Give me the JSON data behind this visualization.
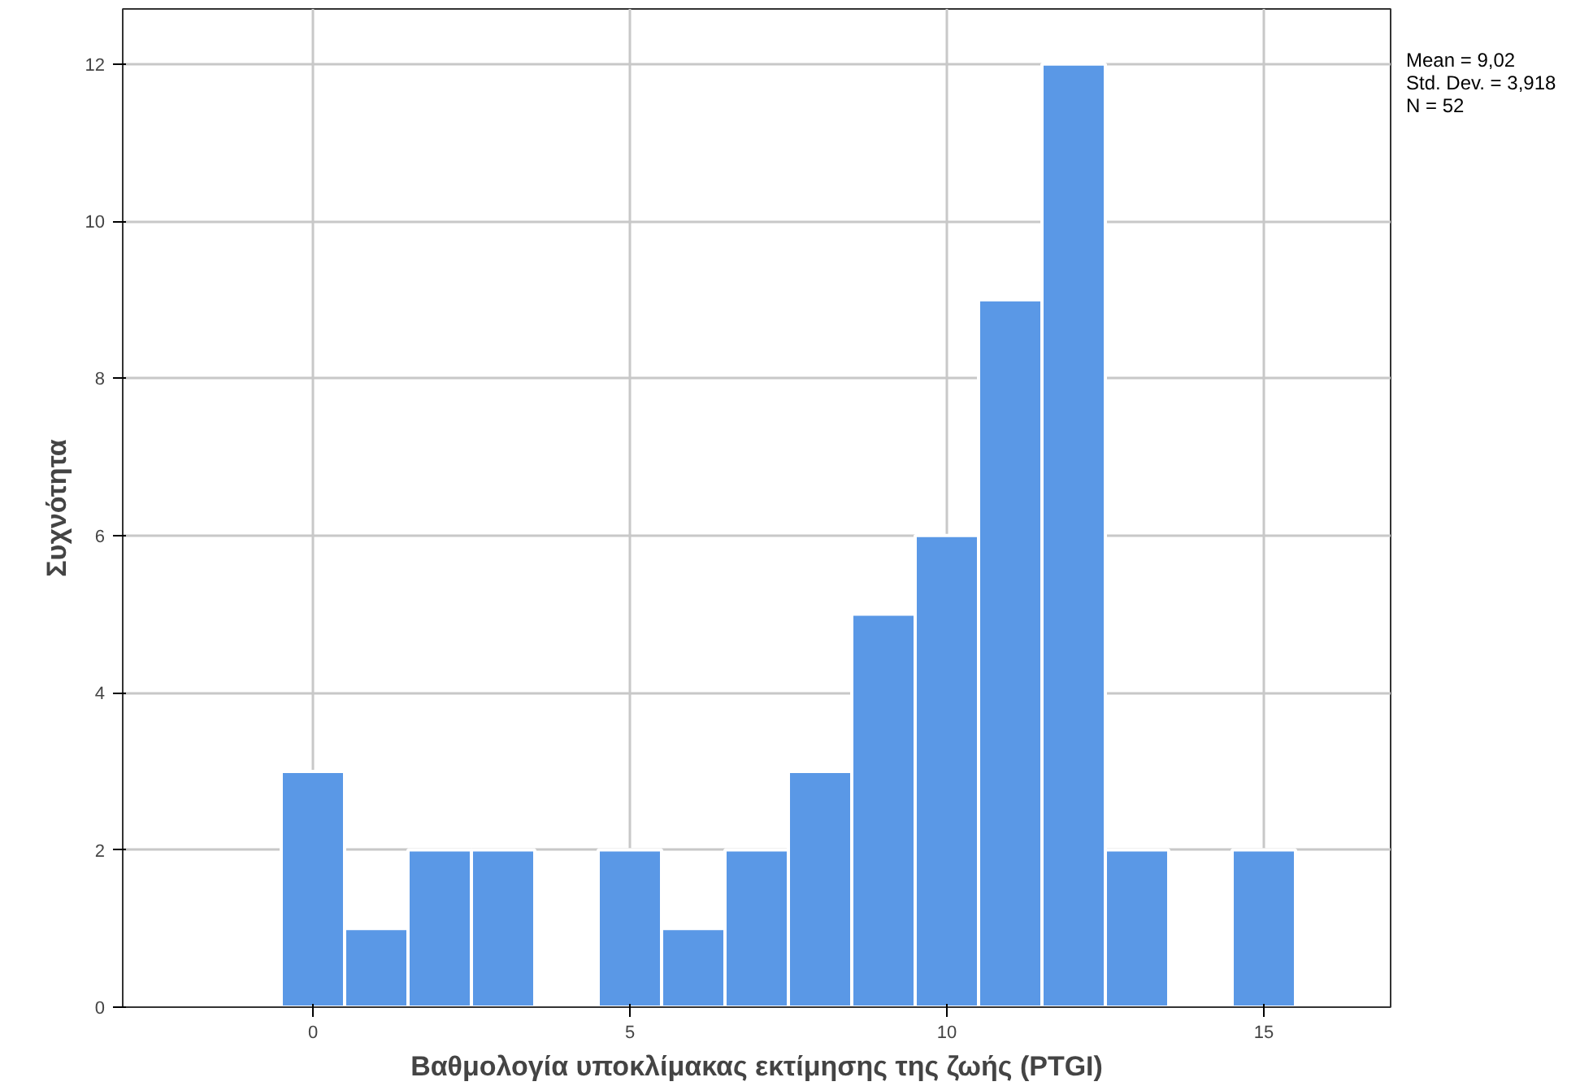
{
  "chart_data": {
    "type": "histogram",
    "xlabel": "Βαθμολογία υποκλίμακας εκτίμησης της ζωής (PTGI)",
    "ylabel": "Συχνότητα",
    "bins": [
      -0.5,
      0.5,
      1.5,
      2.5,
      3.5,
      4.5,
      5.5,
      6.5,
      7.5,
      8.5,
      9.5,
      10.5,
      11.5,
      12.5,
      13.5,
      14.5,
      15.5
    ],
    "values": [
      3,
      1,
      2,
      2,
      0,
      2,
      1,
      2,
      3,
      5,
      6,
      9,
      12,
      2,
      0,
      2
    ],
    "color": "#5a98e6",
    "xlim": [
      -3,
      17
    ],
    "xticks": [
      0,
      5,
      10,
      15
    ],
    "ylim": [
      0,
      12.7
    ],
    "yticks": [
      0,
      2,
      4,
      6,
      8,
      10,
      12
    ],
    "grid": true,
    "annotations": [
      "Mean = 9,02",
      "Std. Dev. = 3,918",
      "N = 52"
    ]
  }
}
